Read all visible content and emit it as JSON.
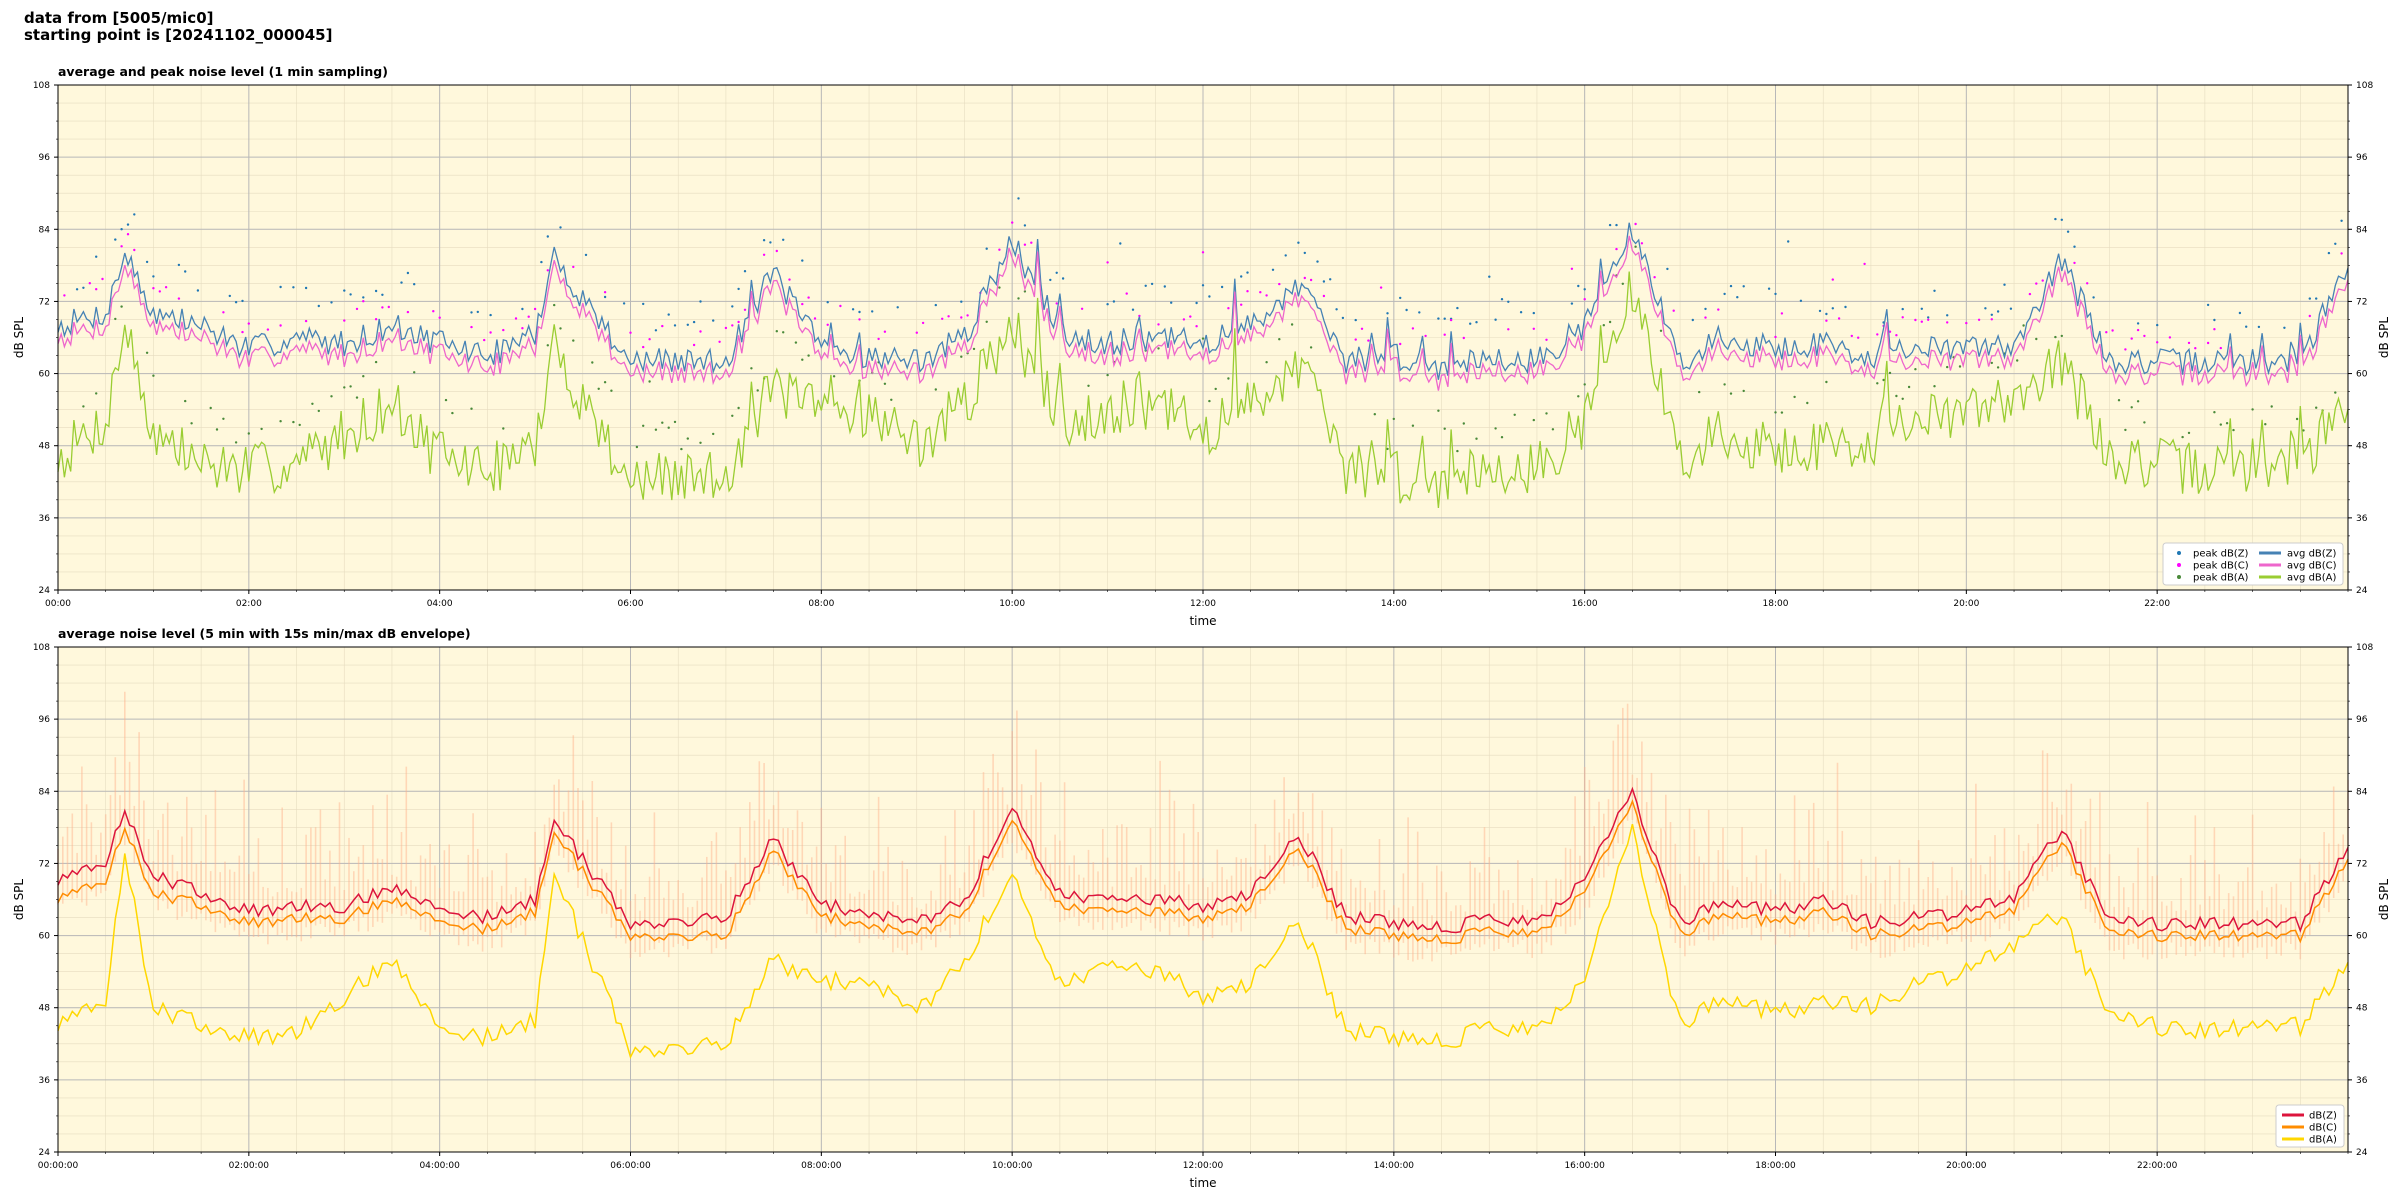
{
  "header": {
    "line1": "data from [5005/mic0]",
    "line2": "starting point is [20241102_000045]"
  },
  "colors": {
    "background": "#fff8dc",
    "peak_z": "#1f77b4",
    "peak_c": "#ff00ff",
    "peak_a": "#4a8a3a",
    "avg_z": "#4682b4",
    "avg_c": "#ee66cc",
    "avg_a": "#9acd32",
    "env": "#ffb08a",
    "db_z": "#dc143c",
    "db_c": "#ff8c00",
    "db_a": "#ffd700"
  },
  "chart_data": [
    {
      "type": "line",
      "title": "average and peak noise level (1 min sampling)",
      "xlabel": "time",
      "ylabel": "dB SPL",
      "ylim": [
        24,
        108
      ],
      "yticks": [
        "24",
        "36",
        "48",
        "60",
        "72",
        "84",
        "96",
        "108"
      ],
      "xlim": [
        0,
        24
      ],
      "xticks": [
        "00:00",
        "02:00",
        "04:00",
        "06:00",
        "08:00",
        "10:00",
        "12:00",
        "14:00",
        "16:00",
        "18:00",
        "20:00",
        "22:00"
      ],
      "grid": true,
      "legend_position": "lower-right",
      "legend": {
        "peak_z": "peak dB(Z)",
        "peak_c": "peak dB(C)",
        "peak_a": "peak dB(A)",
        "avg_z": "avg dB(Z)",
        "avg_c": "avg dB(C)",
        "avg_a": "avg dB(A)"
      },
      "x_hours": [
        0,
        0.5,
        0.7,
        1,
        1.5,
        2,
        2.5,
        3,
        3.5,
        4,
        4.5,
        5,
        5.2,
        6,
        7,
        7.5,
        8,
        8.5,
        9,
        9.5,
        10,
        10.5,
        11,
        11.5,
        12,
        12.5,
        13,
        13.5,
        14,
        14.5,
        15,
        15.5,
        16,
        16.5,
        17,
        17.5,
        18,
        18.5,
        19,
        19.5,
        20,
        20.5,
        21,
        21.5,
        22,
        22.5,
        23,
        23.5,
        24
      ],
      "series": [
        {
          "key": "avg_z",
          "values": [
            68,
            70,
            80,
            70,
            68,
            64,
            66,
            65,
            68,
            65,
            63,
            66,
            79,
            62,
            62,
            77,
            64,
            63,
            62,
            66,
            82,
            67,
            65,
            66,
            65,
            68,
            75,
            62,
            63,
            61,
            63,
            62,
            68,
            84,
            62,
            66,
            64,
            65,
            63,
            64,
            64,
            65,
            79,
            62,
            62,
            62,
            62,
            62,
            78
          ]
        },
        {
          "key": "avg_c",
          "values": [
            66,
            68,
            78,
            68,
            66,
            62,
            64,
            63,
            66,
            63,
            61,
            64,
            77,
            60,
            60,
            75,
            62,
            61,
            60,
            64,
            80,
            65,
            63,
            64,
            63,
            66,
            73,
            60,
            61,
            59,
            61,
            60,
            66,
            82,
            60,
            64,
            62,
            63,
            61,
            62,
            62,
            63,
            77,
            60,
            60,
            60,
            60,
            60,
            76
          ]
        },
        {
          "key": "avg_a",
          "values": [
            46,
            52,
            68,
            50,
            45,
            44,
            45,
            50,
            55,
            46,
            44,
            47,
            64,
            42,
            43,
            58,
            53,
            54,
            48,
            55,
            68,
            52,
            54,
            55,
            50,
            55,
            62,
            44,
            43,
            42,
            45,
            44,
            52,
            74,
            46,
            50,
            47,
            48,
            49,
            52,
            53,
            57,
            62,
            46,
            45,
            44,
            45,
            45,
            55
          ]
        }
      ]
    },
    {
      "type": "line",
      "title": "average noise level (5 min with 15s min/max dB envelope)",
      "xlabel": "time",
      "ylabel": "dB SPL",
      "ylim": [
        24,
        108
      ],
      "yticks": [
        "24",
        "36",
        "48",
        "60",
        "72",
        "84",
        "96",
        "108"
      ],
      "xlim": [
        0,
        24
      ],
      "xticks": [
        "00:00:00",
        "02:00:00",
        "04:00:00",
        "06:00:00",
        "08:00:00",
        "10:00:00",
        "12:00:00",
        "14:00:00",
        "16:00:00",
        "18:00:00",
        "20:00:00",
        "22:00:00"
      ],
      "grid": true,
      "legend_position": "lower-right",
      "legend": {
        "db_z": "dB(Z)",
        "db_c": "dB(C)",
        "db_a": "dB(A)"
      },
      "x_hours": [
        0,
        0.5,
        0.7,
        1,
        1.5,
        2,
        2.5,
        3,
        3.5,
        4,
        4.5,
        5,
        5.2,
        6,
        7,
        7.5,
        8,
        8.5,
        9,
        9.5,
        10,
        10.5,
        11,
        11.5,
        12,
        12.5,
        13,
        13.5,
        14,
        14.5,
        15,
        15.5,
        16,
        16.5,
        17,
        17.5,
        18,
        18.5,
        19,
        19.5,
        20,
        20.5,
        21,
        21.5,
        22,
        22.5,
        23,
        23.5,
        24
      ],
      "series": [
        {
          "key": "db_z",
          "values": [
            69,
            72,
            81,
            70,
            67,
            64,
            65,
            65,
            68,
            64,
            63,
            66,
            79,
            62,
            63,
            76,
            65,
            64,
            62,
            66,
            81,
            67,
            66,
            66,
            65,
            67,
            77,
            63,
            62,
            61,
            63,
            62,
            69,
            84,
            62,
            66,
            64,
            66,
            62,
            63,
            64,
            66,
            78,
            62,
            62,
            62,
            62,
            62,
            75
          ]
        },
        {
          "key": "db_c",
          "values": [
            66,
            69,
            78,
            67,
            65,
            62,
            63,
            63,
            66,
            62,
            61,
            64,
            77,
            60,
            60,
            74,
            63,
            62,
            60,
            64,
            79,
            65,
            64,
            64,
            63,
            65,
            75,
            61,
            60,
            59,
            61,
            60,
            67,
            82,
            60,
            64,
            62,
            64,
            60,
            61,
            62,
            64,
            76,
            60,
            60,
            60,
            60,
            60,
            73
          ]
        },
        {
          "key": "db_a",
          "values": [
            45,
            49,
            74,
            48,
            45,
            43,
            44,
            50,
            56,
            44,
            43,
            46,
            70,
            41,
            42,
            56,
            52,
            53,
            47,
            56,
            70,
            52,
            55,
            54,
            50,
            52,
            63,
            44,
            43,
            42,
            45,
            44,
            52,
            78,
            45,
            50,
            47,
            49,
            48,
            52,
            54,
            58,
            64,
            46,
            45,
            44,
            45,
            45,
            56
          ]
        }
      ]
    }
  ]
}
